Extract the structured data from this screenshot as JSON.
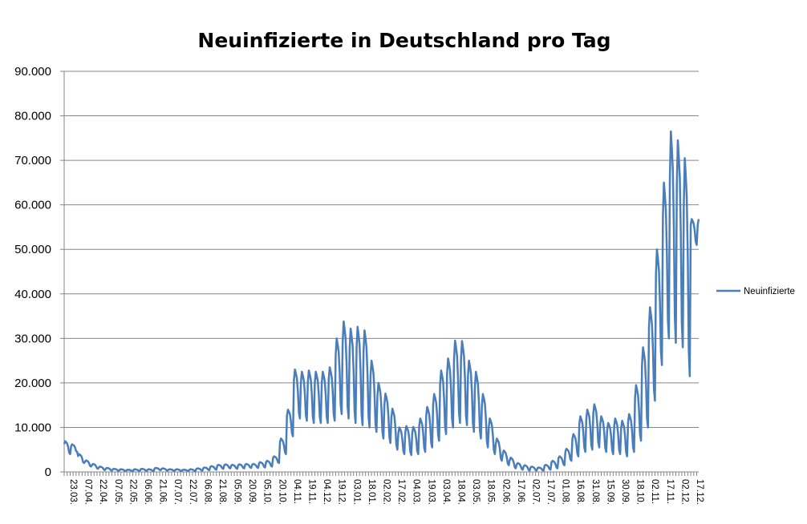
{
  "chart_data": {
    "type": "line",
    "title": "Neuinfizierte in Deutschland pro Tag",
    "xlabel": "",
    "ylabel": "",
    "ylim": [
      0,
      90000
    ],
    "yticks": [
      0,
      10000,
      20000,
      30000,
      40000,
      50000,
      60000,
      70000,
      80000,
      90000
    ],
    "ytick_labels": [
      "0",
      "10.000",
      "20.000",
      "30.000",
      "40.000",
      "50.000",
      "60.000",
      "70.000",
      "80.000",
      "90.000"
    ],
    "xtick_labels": [
      "23.03.",
      "07.04.",
      "22.04.",
      "07.05.",
      "22.05.",
      "06.06.",
      "21.06.",
      "07.07.",
      "22.07.",
      "06.08.",
      "21.08.",
      "05.09.",
      "20.09.",
      "05.10.",
      "20.10.",
      "04.11.",
      "19.11.",
      "04.12.",
      "19.12.",
      "03.01.",
      "18.01.",
      "02.02.",
      "17.02.",
      "04.03.",
      "19.03.",
      "03.04.",
      "18.04.",
      "03.05.",
      "18.05.",
      "02.06.",
      "17.06.",
      "02.07.",
      "17.07.",
      "01.08.",
      "16.08.",
      "31.08.",
      "15.09.",
      "30.09.",
      "18.10.",
      "02.11.",
      "17.11.",
      "02.12.",
      "17.12."
    ],
    "grid": true,
    "legend_position": "right",
    "series": [
      {
        "name": "Neuinfizierte",
        "color": "#4A7EBB",
        "days": 639,
        "weekly_high": [
          6900,
          6200,
          4000,
          2600,
          1800,
          1200,
          900,
          700,
          600,
          500,
          600,
          700,
          600,
          900,
          800,
          600,
          600,
          500,
          600,
          800,
          1000,
          1300,
          1600,
          1700,
          1600,
          1700,
          1800,
          1800,
          2200,
          2500,
          3500,
          7500,
          14000,
          23000,
          22500,
          22800,
          22500,
          22500,
          23500,
          30000,
          33800,
          32200,
          32600,
          31800,
          25000,
          20000,
          17600,
          14200,
          10000,
          10300,
          10100,
          12000,
          14600,
          17500,
          22800,
          25500,
          29500,
          29400,
          25000,
          22500,
          17500,
          12000,
          7500,
          4800,
          3200,
          2000,
          1500,
          1200,
          1000,
          1600,
          2500,
          3500,
          5200,
          8500,
          12500,
          14000,
          15200,
          12500,
          11000,
          12000,
          11500,
          13000,
          19500,
          28000,
          37000,
          50000,
          65000,
          76500,
          74500,
          70500,
          56800
        ],
        "weekly_low": [
          4000,
          4500,
          2000,
          1200,
          700,
          400,
          300,
          250,
          200,
          150,
          200,
          250,
          200,
          400,
          300,
          250,
          200,
          200,
          200,
          300,
          400,
          500,
          700,
          800,
          700,
          800,
          900,
          900,
          1000,
          1200,
          2000,
          4000,
          8000,
          12000,
          11500,
          11000,
          11000,
          11000,
          11500,
          13000,
          12000,
          11000,
          10500,
          10000,
          9000,
          7500,
          6500,
          5000,
          4000,
          3800,
          4000,
          4500,
          5500,
          7000,
          8500,
          10000,
          11000,
          10500,
          9000,
          7500,
          5500,
          4000,
          2500,
          1500,
          800,
          500,
          300,
          300,
          300,
          500,
          800,
          1500,
          2500,
          3500,
          4500,
          5000,
          5500,
          4500,
          4000,
          4000,
          3500,
          4500,
          7000,
          10000,
          16000,
          24000,
          30000,
          29000,
          28000,
          21500,
          51000
        ]
      }
    ]
  }
}
